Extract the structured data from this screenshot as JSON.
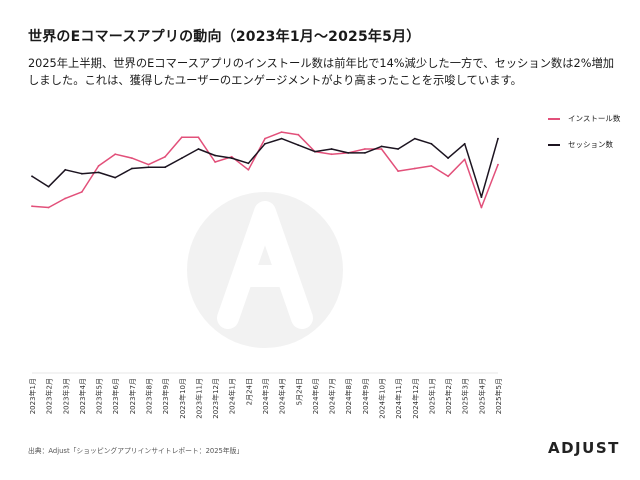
{
  "title": "世界のEコマースアプリの動向（2023年1月～2025年5月）",
  "subtitle": "2025年上半期、世界のEコマースアプリのインストール数は前年比で14%減少した一方で、セッション数は2%増加しました。これは、獲得したユーザーのエンゲージメントがより高まったことを示唆しています。",
  "source": "出典：Adjust「ショッピングアプリインサイトレポート：2025年版」",
  "brand": "ADJUST",
  "colors": {
    "installs": "#e2507a",
    "sessions": "#1c1420",
    "watermark": "#f2f2f2"
  },
  "chart_data": {
    "type": "line",
    "title": "",
    "xlabel": "",
    "ylabel": "",
    "legend_position": "top-right",
    "grid": false,
    "ylim": [
      0,
      100
    ],
    "categories": [
      "2023年1月",
      "2023年2月",
      "2023年3月",
      "2023年4月",
      "2023年5月",
      "2023年6月",
      "2023年7月",
      "2023年8月",
      "2023年9月",
      "2023年10月",
      "2023年11月",
      "2023年12月",
      "2024年1月",
      "2月24日",
      "2024年3月",
      "2024年4月",
      "5月24日",
      "2024年6月",
      "2024年7月",
      "2024年8月",
      "2024年9月",
      "2024年10月",
      "2024年11月",
      "2024年12月",
      "2025年1月",
      "2025年2月",
      "2025年3月",
      "2025年4月",
      "2025年5月"
    ],
    "series": [
      {
        "name": "インストール数",
        "values": [
          63,
          62.5,
          66,
          68.5,
          78.5,
          83,
          81.5,
          79,
          82,
          89.5,
          89.5,
          80,
          82,
          77,
          89,
          91.5,
          90.5,
          84,
          83,
          83.5,
          85,
          85,
          76.5,
          77.5,
          78.5,
          74.5,
          81,
          62.5,
          79
        ]
      },
      {
        "name": "セッション数",
        "values": [
          74.5,
          70.5,
          77,
          75.5,
          76,
          74,
          77.5,
          78,
          78,
          81.5,
          85,
          82.5,
          81.5,
          79.5,
          87,
          89,
          86.5,
          84,
          85,
          83.5,
          83.5,
          86,
          85,
          89,
          87,
          81.5,
          87,
          66.5,
          89
        ]
      }
    ]
  }
}
